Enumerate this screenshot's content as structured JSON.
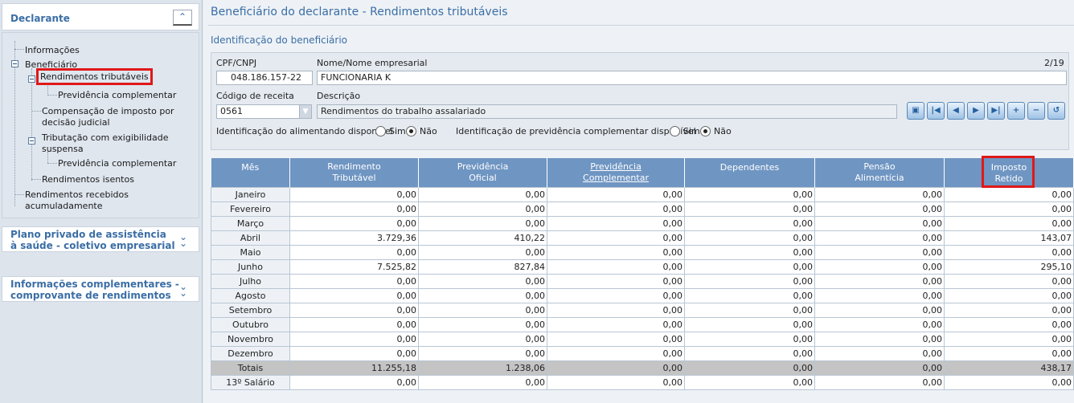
{
  "sidebar": {
    "declarante_title": "Declarante",
    "collapse_icon": "⌃",
    "tree": {
      "informacoes": "Informações",
      "beneficiario": "Beneficiário",
      "rendimentos_tributaveis": "Rendimentos tributáveis",
      "previdencia_complementar_1": "Previdência complementar",
      "compensacao_l1": "Compensação de imposto por",
      "compensacao_l2": "decisão judicial",
      "tributacao_l1": "Tributação com exigibilidade",
      "tributacao_l2": "suspensa",
      "previdencia_complementar_2": "Previdência complementar",
      "rendimentos_isentos": "Rendimentos isentos",
      "rra_l1": "Rendimentos recebidos",
      "rra_l2": "acumuladamente"
    },
    "plano_l1": "Plano privado de assistência",
    "plano_l2": "à saúde - coletivo empresarial",
    "info_l1": "Informações complementares -",
    "info_l2": "comprovante de rendimentos"
  },
  "main": {
    "page_title": "Beneficiário do declarante - Rendimentos tributáveis",
    "section_title": "Identificação do beneficiário",
    "form": {
      "cpf_label": "CPF/CNPJ",
      "cpf_value": "048.186.157-22",
      "nome_label": "Nome/Nome empresarial",
      "nome_value": "FUNCIONARIA K",
      "counter": "2/19",
      "codigo_label": "Código de receita",
      "codigo_value": "0561",
      "descricao_label": "Descrição",
      "descricao_value": "Rendimentos do trabalho assalariado",
      "alimentando_label": "Identificação do alimentando disponível",
      "previdencia_label": "Identificação de previdência complementar disponível",
      "sim": "Sim",
      "nao": "Não"
    },
    "nav_buttons": [
      "copy",
      "first",
      "prev",
      "next",
      "last",
      "add",
      "remove",
      "undo"
    ],
    "table": {
      "headers": {
        "mes": "Mês",
        "rendimento_l1": "Rendimento",
        "rendimento_l2": "Tributável",
        "previdencia_oficial_l1": "Previdência",
        "previdencia_oficial_l2": "Oficial",
        "previdencia_compl_l1": "Previdência",
        "previdencia_compl_l2": "Complementar",
        "dependentes": "Dependentes",
        "pensao_l1": "Pensão",
        "pensao_l2": "Alimentícia",
        "imposto_l1": "Imposto",
        "imposto_l2": "Retido"
      },
      "rows": [
        [
          "Janeiro",
          "0,00",
          "0,00",
          "0,00",
          "0,00",
          "0,00",
          "0,00"
        ],
        [
          "Fevereiro",
          "0,00",
          "0,00",
          "0,00",
          "0,00",
          "0,00",
          "0,00"
        ],
        [
          "Março",
          "0,00",
          "0,00",
          "0,00",
          "0,00",
          "0,00",
          "0,00"
        ],
        [
          "Abril",
          "3.729,36",
          "410,22",
          "0,00",
          "0,00",
          "0,00",
          "143,07"
        ],
        [
          "Maio",
          "0,00",
          "0,00",
          "0,00",
          "0,00",
          "0,00",
          "0,00"
        ],
        [
          "Junho",
          "7.525,82",
          "827,84",
          "0,00",
          "0,00",
          "0,00",
          "295,10"
        ],
        [
          "Julho",
          "0,00",
          "0,00",
          "0,00",
          "0,00",
          "0,00",
          "0,00"
        ],
        [
          "Agosto",
          "0,00",
          "0,00",
          "0,00",
          "0,00",
          "0,00",
          "0,00"
        ],
        [
          "Setembro",
          "0,00",
          "0,00",
          "0,00",
          "0,00",
          "0,00",
          "0,00"
        ],
        [
          "Outubro",
          "0,00",
          "0,00",
          "0,00",
          "0,00",
          "0,00",
          "0,00"
        ],
        [
          "Novembro",
          "0,00",
          "0,00",
          "0,00",
          "0,00",
          "0,00",
          "0,00"
        ],
        [
          "Dezembro",
          "0,00",
          "0,00",
          "0,00",
          "0,00",
          "0,00",
          "0,00"
        ],
        [
          "Totais",
          "11.255,18",
          "1.238,06",
          "0,00",
          "0,00",
          "0,00",
          "438,17"
        ],
        [
          "13º Salário",
          "0,00",
          "0,00",
          "0,00",
          "0,00",
          "0,00",
          "0,00"
        ]
      ]
    }
  }
}
